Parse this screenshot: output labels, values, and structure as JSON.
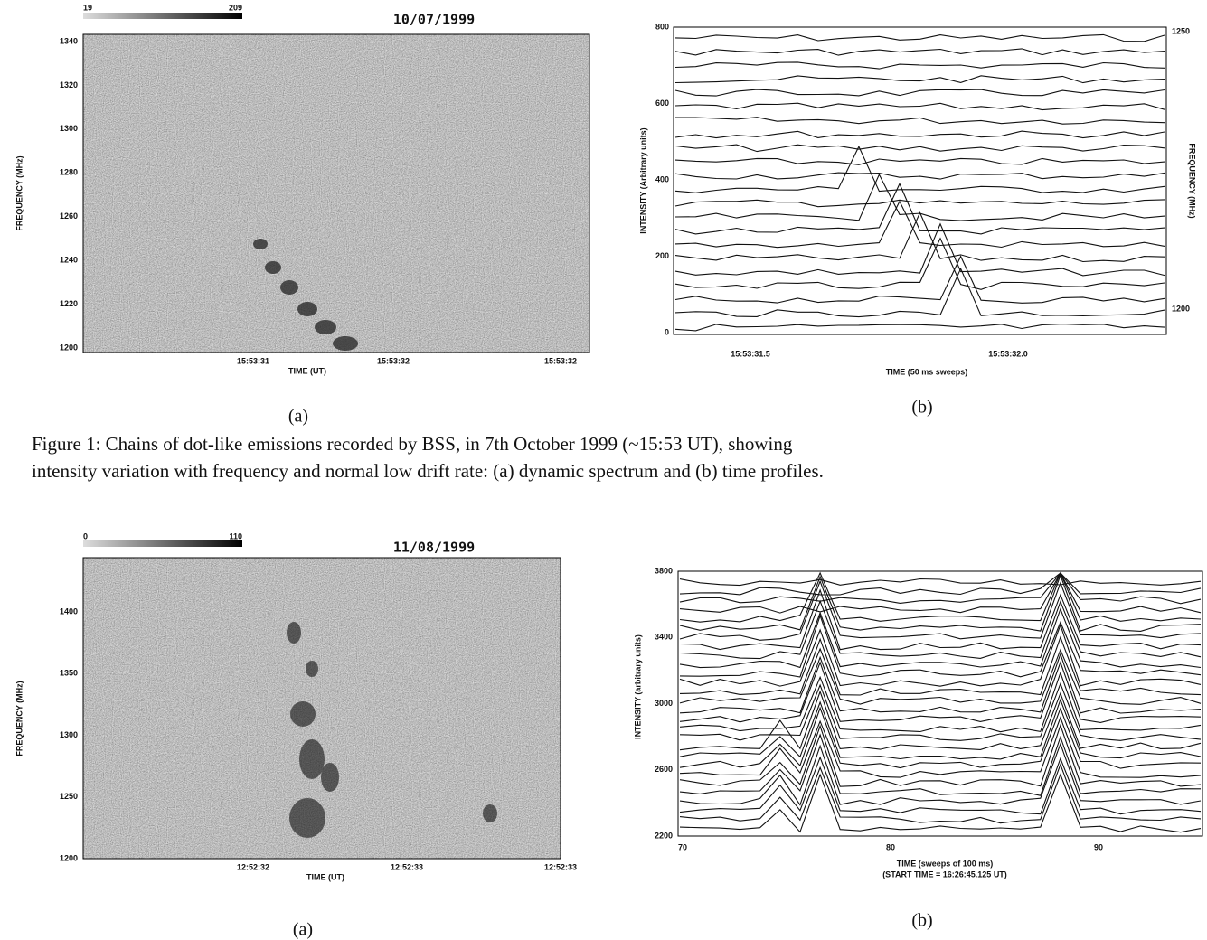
{
  "figure1": {
    "panel_a": {
      "colorbar_min": "19",
      "colorbar_max": "209",
      "date": "10/07/1999",
      "yticks": [
        "1340",
        "1320",
        "1300",
        "1280",
        "1260",
        "1240",
        "1220",
        "1200"
      ],
      "ylabel": "FREQUENCY (MHz)",
      "xticks": [
        "15:53:31",
        "15:53:32",
        "15:53:32"
      ],
      "xlabel": "TIME (UT)",
      "label": "(a)"
    },
    "panel_b": {
      "yticks": [
        "800",
        "600",
        "400",
        "200",
        "0"
      ],
      "ylabel": "INTENSITY (Arbitrary units)",
      "y2ticks": [
        "1250",
        "1200"
      ],
      "y2label": "FREQUENCY (MHz)",
      "xticks": [
        "15:53:31.5",
        "15:53:32.0"
      ],
      "xlabel": "TIME (50 ms sweeps)",
      "label": "(b)"
    },
    "caption": [
      "Figure 1: Chains of dot-like emissions recorded by BSS, in 7th October 1999 (~15:53 UT), showing",
      "intensity variation with frequency and normal low drift rate: (a) dynamic spectrum and (b) time profiles."
    ]
  },
  "figure2": {
    "panel_a": {
      "colorbar_min": "0",
      "colorbar_max": "110",
      "date": "11/08/1999",
      "yticks": [
        "1400",
        "1350",
        "1300",
        "1250",
        "1200"
      ],
      "ylabel": "FREQUENCY (MHz)",
      "xticks": [
        "12:52:32",
        "12:52:33",
        "12:52:33"
      ],
      "xlabel": "TIME (UT)",
      "label": "(a)"
    },
    "panel_b": {
      "yticks": [
        "3800",
        "3400",
        "3000",
        "2600",
        "2200"
      ],
      "ylabel": "INTENSITY (arbitrary units)",
      "xticks": [
        "70",
        "80",
        "90"
      ],
      "xlabel": "TIME (sweeps of 100 ms)",
      "xlabel2": "(START TIME = 16:26:45.125 UT)",
      "label": "(b)"
    }
  }
}
